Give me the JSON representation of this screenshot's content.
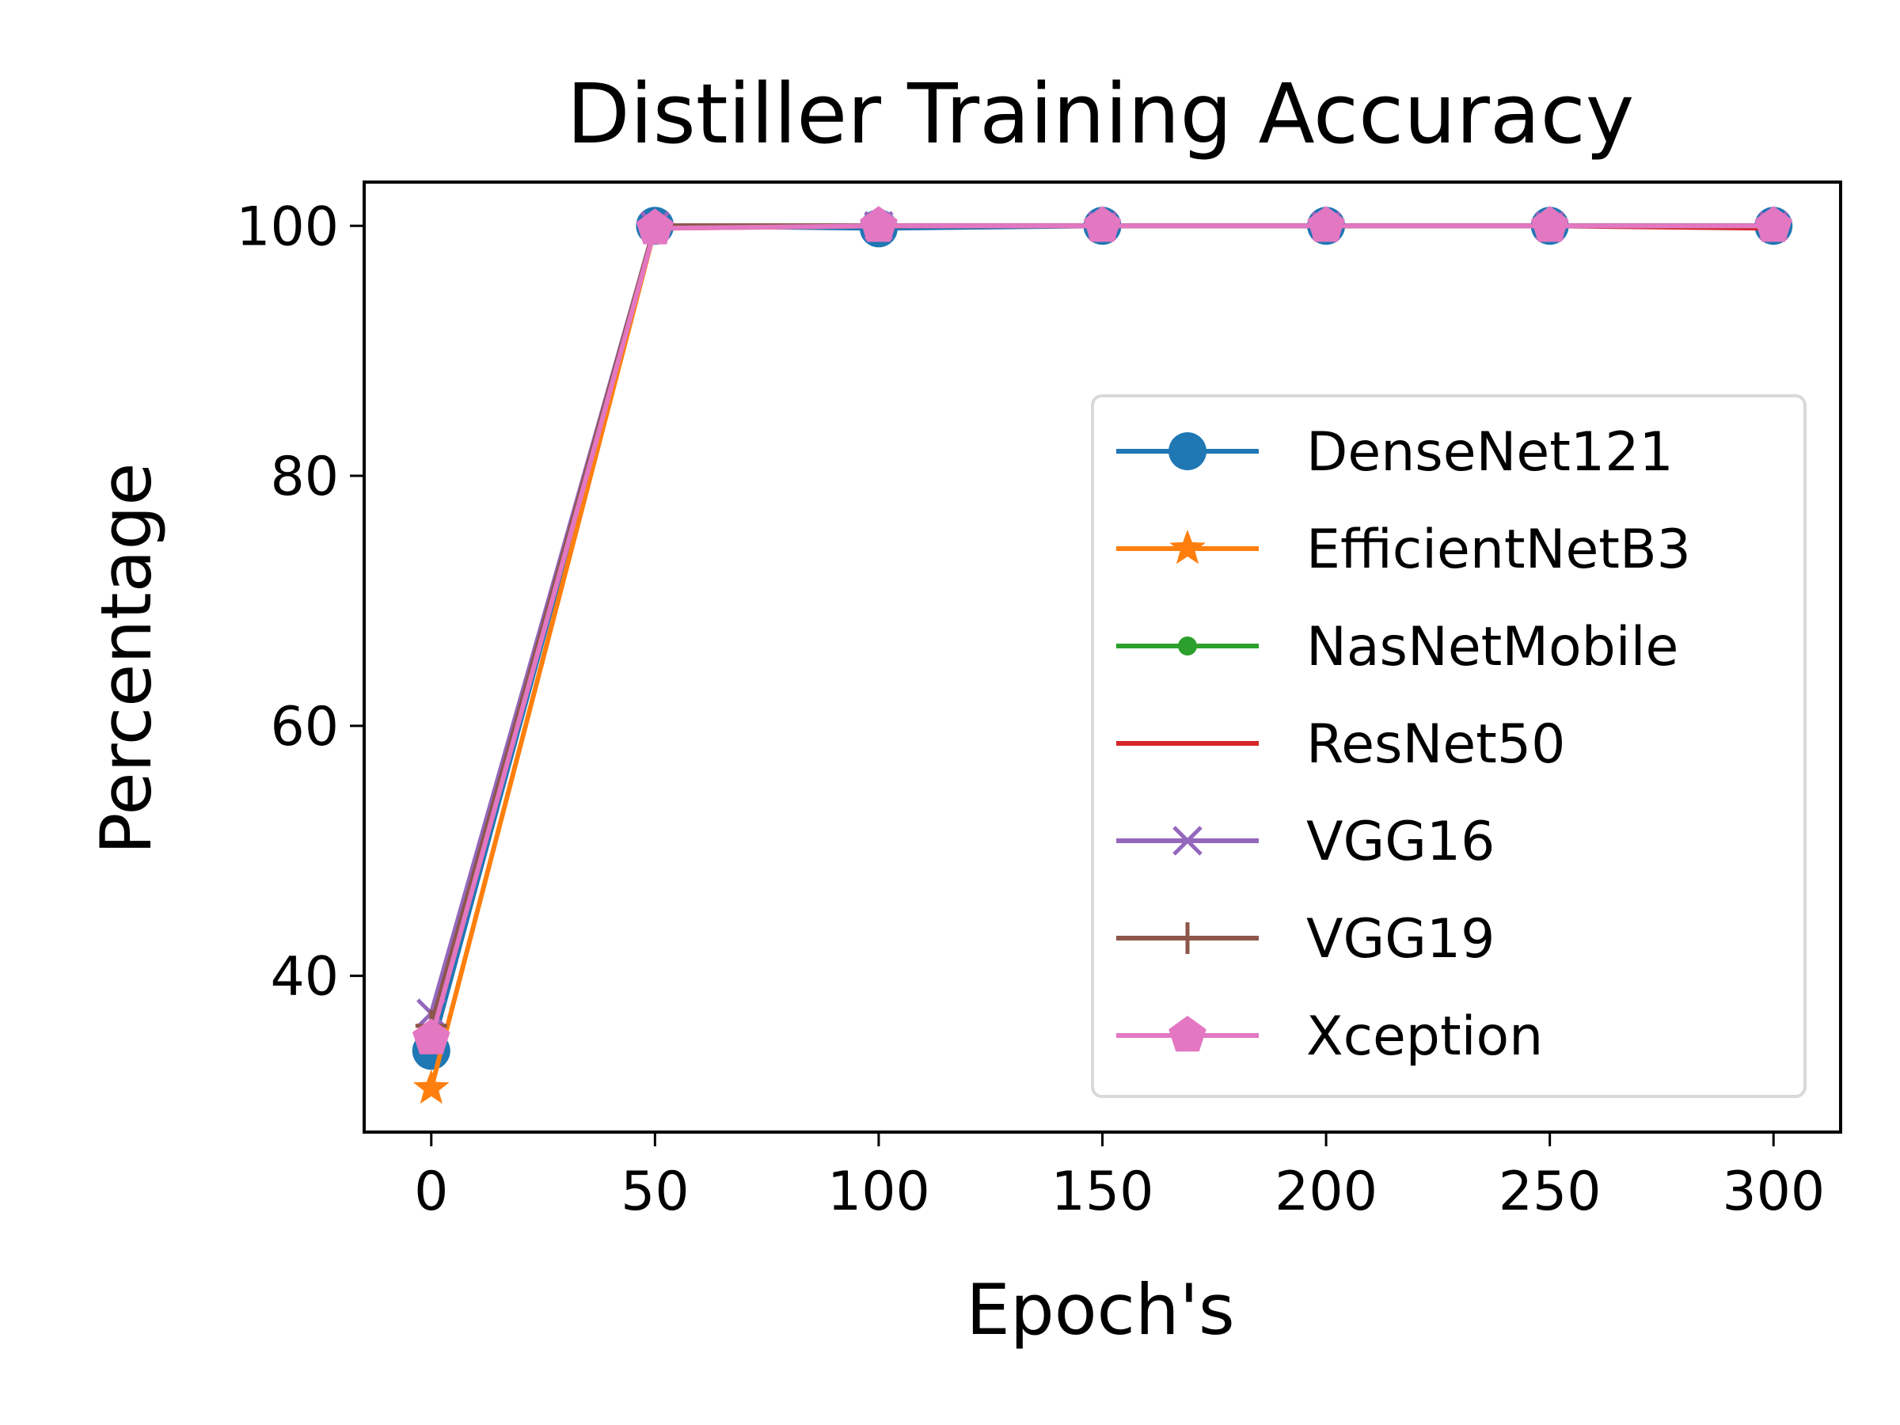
{
  "chart_data": {
    "type": "line",
    "title": "Distiller Training Accuracy",
    "xlabel": "Epoch's",
    "ylabel": "Percentage",
    "xlim": [
      -15,
      315
    ],
    "ylim": [
      27.5,
      103.5
    ],
    "xticks": [
      0,
      50,
      100,
      150,
      200,
      250,
      300
    ],
    "yticks": [
      40,
      60,
      80,
      100
    ],
    "grid": false,
    "legend_position": "center-right",
    "x": [
      0,
      50,
      100,
      150,
      200,
      250,
      300
    ],
    "series": [
      {
        "name": "DenseNet121",
        "color": "#1f77b4",
        "marker": "circle",
        "values": [
          34,
          100,
          99.8,
          100,
          100,
          100,
          100
        ]
      },
      {
        "name": "EfficientNetB3",
        "color": "#ff7f0e",
        "marker": "star",
        "values": [
          31,
          99.8,
          100,
          100,
          100,
          100,
          100
        ]
      },
      {
        "name": "NasNetMobile",
        "color": "#2ca02c",
        "marker": "point",
        "values": [
          35.5,
          100,
          100,
          100,
          100,
          100,
          100
        ]
      },
      {
        "name": "ResNet50",
        "color": "#d62728",
        "marker": "none",
        "values": [
          35,
          100,
          100,
          100,
          100,
          100,
          99.8
        ]
      },
      {
        "name": "VGG16",
        "color": "#9467bd",
        "marker": "x",
        "values": [
          37,
          100,
          100,
          100,
          100,
          100,
          100
        ]
      },
      {
        "name": "VGG19",
        "color": "#8c564b",
        "marker": "plus",
        "values": [
          36,
          100,
          100,
          100,
          100,
          100,
          100
        ]
      },
      {
        "name": "Xception",
        "color": "#e377c2",
        "marker": "pentagon",
        "values": [
          35,
          99.8,
          100,
          100,
          100,
          100,
          100
        ]
      }
    ]
  }
}
